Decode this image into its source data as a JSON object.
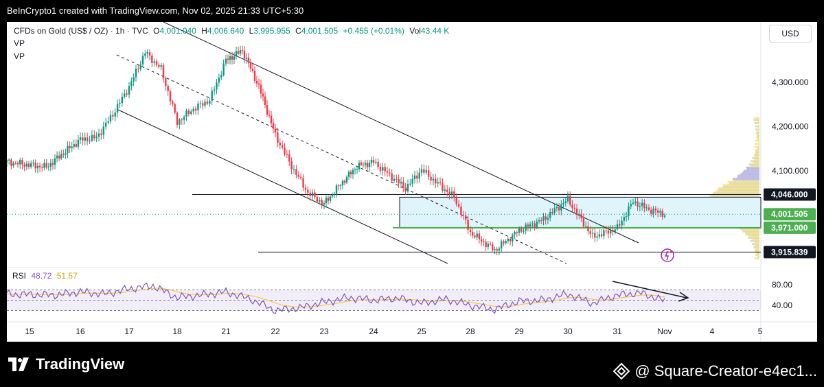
{
  "header": {
    "title": "BeInCrypto1 created with TradingView.com, Nov 02, 2025 21:33 UTC+5:30"
  },
  "legend": {
    "symbol": "CFDs on Gold (US$ / OZ) · 1h · TVC",
    "open_label": "O",
    "open": "4,001.040",
    "high_label": "H",
    "high": "4,006.640",
    "low_label": "L",
    "low": "3,995.955",
    "close_label": "C",
    "close": "4,001.505",
    "change": "+0.455 (+0.01%)",
    "vol_label": "Vol",
    "vol": "43.44 K",
    "indicator1": "VP",
    "indicator2": "VP"
  },
  "currency_button": "USD",
  "rsi": {
    "label": "RSI",
    "value": "48.72",
    "ma_value": "51.57"
  },
  "colors": {
    "up": "#089981",
    "down": "#f23645",
    "rsi_line": "#7e57c2",
    "rsi_ma": "#f7c843",
    "channel": "#000000",
    "zone": "#e0f4fb",
    "support": "#4caf50"
  },
  "chart_data": {
    "type": "candlestick",
    "symbol": "CFDs on Gold (US$ / OZ)",
    "interval": "1h",
    "x_ticks": [
      "15",
      "16",
      "17",
      "18",
      "21",
      "22",
      "23",
      "24",
      "25",
      "28",
      "29",
      "30",
      "31",
      "Nov",
      "4",
      "5"
    ],
    "y_ticks": [
      "4,300.000",
      "4,200.000",
      "4,100.000"
    ],
    "ylim": [
      3890,
      4390
    ],
    "price_labels": [
      {
        "text": "4,046.000",
        "value": 4046,
        "style": "dark"
      },
      {
        "text": "4,001.505",
        "value": 4001.505,
        "style": "green"
      },
      {
        "text": "3,971.000",
        "value": 3971,
        "style": "green"
      },
      {
        "text": "3,915.839",
        "value": 3915.839,
        "style": "dark"
      }
    ],
    "horizontal_levels": [
      4046,
      3971,
      3915.839
    ],
    "price_path": [
      [
        "15",
        4120
      ],
      [
        "15",
        4108
      ],
      [
        "15",
        4140
      ],
      [
        "16",
        4170
      ],
      [
        "16",
        4175
      ],
      [
        "16",
        4228
      ],
      [
        "17",
        4290
      ],
      [
        "17",
        4368
      ],
      [
        "17",
        4330
      ],
      [
        "18",
        4210
      ],
      [
        "18",
        4240
      ],
      [
        "18",
        4260
      ],
      [
        "21",
        4350
      ],
      [
        "21",
        4372
      ],
      [
        "21",
        4290
      ],
      [
        "22",
        4180
      ],
      [
        "22",
        4110
      ],
      [
        "22",
        4050
      ],
      [
        "23",
        4025
      ],
      [
        "23",
        4070
      ],
      [
        "23",
        4110
      ],
      [
        "24",
        4120
      ],
      [
        "24",
        4090
      ],
      [
        "24",
        4060
      ],
      [
        "25",
        4102
      ],
      [
        "25",
        4070
      ],
      [
        "25",
        4040
      ],
      [
        "28",
        3960
      ],
      [
        "28",
        3920
      ],
      [
        "29",
        3965
      ],
      [
        "29",
        3990
      ],
      [
        "30",
        4035
      ],
      [
        "30",
        3950
      ],
      [
        "31",
        3970
      ],
      [
        "31",
        4030
      ],
      [
        "31",
        4012
      ],
      [
        "Nov",
        4001.505
      ]
    ],
    "rsi_axis": {
      "ticks": [
        "80.00",
        "40.00"
      ],
      "ylim": [
        20,
        100
      ]
    },
    "rsi_path": [
      [
        "15",
        62
      ],
      [
        "15",
        60
      ],
      [
        "16",
        66
      ],
      [
        "16",
        62
      ],
      [
        "17",
        72
      ],
      [
        "17",
        78
      ],
      [
        "18",
        55
      ],
      [
        "18",
        60
      ],
      [
        "21",
        66
      ],
      [
        "21",
        52
      ],
      [
        "22",
        30
      ],
      [
        "22",
        35
      ],
      [
        "23",
        46
      ],
      [
        "23",
        55
      ],
      [
        "24",
        50
      ],
      [
        "24",
        54
      ],
      [
        "25",
        44
      ],
      [
        "25",
        52
      ],
      [
        "28",
        40
      ],
      [
        "28",
        32
      ],
      [
        "29",
        48
      ],
      [
        "29",
        50
      ],
      [
        "30",
        62
      ],
      [
        "30",
        44
      ],
      [
        "31",
        60
      ],
      [
        "31",
        64
      ],
      [
        "Nov",
        48.72
      ]
    ]
  },
  "footer": {
    "brand": "TradingView",
    "credit": "@ Square-Creator-e4ec1..."
  }
}
